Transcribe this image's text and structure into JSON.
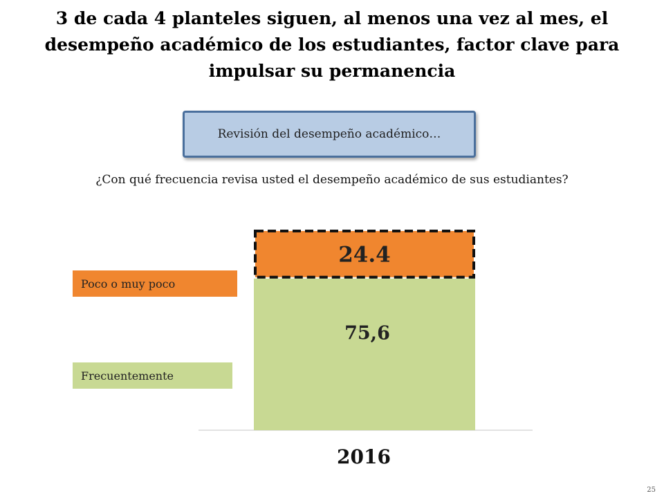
{
  "title": "3 de cada 4 planteles siguen, al menos una vez al mes, el desempeño académico de los estudiantes, factor clave para impulsar su permanencia",
  "section_label": "Revisión del desempeño académico…",
  "question": "¿Con qué frecuencia revisa usted el desempeño académico de sus estudiantes?",
  "page_number": "25",
  "colors": {
    "poco": "#f0862f",
    "frecuentemente": "#c8d993",
    "box_fill": "#b8cce4",
    "box_border": "#4a6f9c"
  },
  "chart_data": {
    "type": "bar",
    "stacked": true,
    "categories": [
      "2016"
    ],
    "series": [
      {
        "name": "Frecuentemente",
        "values": [
          75.6
        ],
        "label": "75,6",
        "color": "#c8d993"
      },
      {
        "name": "Poco o muy poco",
        "values": [
          24.4
        ],
        "label": "24.4",
        "color": "#f0862f",
        "border": "dashed"
      }
    ],
    "ylim": [
      0,
      100
    ],
    "grid": false,
    "legend_position": "left"
  }
}
